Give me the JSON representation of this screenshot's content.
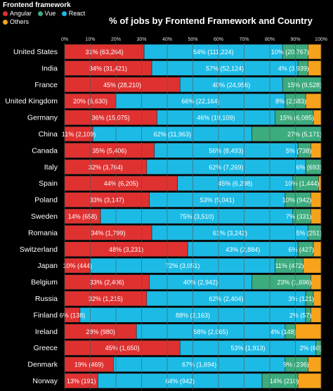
{
  "legend": {
    "title": "Frontend framework",
    "items": [
      {
        "name": "Angular",
        "color": "#e03131"
      },
      {
        "name": "Vue",
        "color": "#3cab7e"
      },
      {
        "name": "React",
        "color": "#1cbbe6"
      },
      {
        "name": "Others",
        "color": "#f7a21b"
      }
    ]
  },
  "chart_data": {
    "type": "bar",
    "orientation": "horizontal-stacked-percent",
    "title": "% of jobs by Frontend Framework and Country",
    "xlabel": "",
    "ylabel": "",
    "xlim": [
      0,
      100
    ],
    "x_ticks": [
      "0%",
      "10%",
      "20%",
      "30%",
      "40%",
      "50%",
      "60%",
      "70%",
      "80%",
      "90%",
      "100%"
    ],
    "grid": true,
    "legend_position": "top-left",
    "categories": [
      "United States",
      "India",
      "France",
      "United Kingdom",
      "Germany",
      "China",
      "Canada",
      "Italy",
      "Spain",
      "Poland",
      "Sweden",
      "Romania",
      "Switzerland",
      "Japan",
      "Belgium",
      "Russia",
      "Finland",
      "Ireland",
      "Greece",
      "Denmark",
      "Norway"
    ],
    "series": [
      {
        "name": "Angular",
        "color": "#e03131",
        "values": [
          31,
          34,
          45,
          20,
          36,
          11,
          35,
          32,
          44,
          33,
          14,
          34,
          48,
          10,
          33,
          32,
          6,
          28,
          45,
          19,
          13
        ],
        "labels": [
          "31% (63,264)",
          "34% (31,421)",
          "45% (28,210)",
          "20% (6,630)",
          "36% (15,075)",
          "11% (2,109)",
          "35% (5,406)",
          "32% (3,764)",
          "44% (6,205)",
          "33% (3,147)",
          "14% (658)",
          "34% (1,799)",
          "48% (3,231)",
          "10% (444)",
          "33% (2,406)",
          "32% (1,215)",
          "6% (138)",
          "28% (980)",
          "45% (1,650)",
          "19% (469)",
          "13% (191)"
        ]
      },
      {
        "name": "React",
        "color": "#1cbbe6",
        "values": [
          54,
          57,
          40,
          66,
          46,
          62,
          56,
          62,
          45,
          53,
          75,
          61,
          43,
          72,
          40,
          62,
          88,
          58,
          53,
          67,
          64
        ],
        "labels": [
          "54% (111,224)",
          "57% (52,124)",
          "40% (24,956)",
          "66% (22,164)",
          "46% (19,109)",
          "62% (11,963)",
          "56% (8,493)",
          "62% (7,269)",
          "45% (6,298)",
          "53% (5,041)",
          "75% (3,510)",
          "61% (3,242)",
          "43% (2,884)",
          "72% (3,051)",
          "40% (2,942)",
          "62% (2,404)",
          "88% (2,163)",
          "58% (2,065)",
          "53% (1,913)",
          "67% (1,694)",
          "64% (942)"
        ]
      },
      {
        "name": "Vue",
        "color": "#3cab7e",
        "values": [
          10,
          4,
          15,
          8,
          15,
          27,
          5,
          6,
          10,
          10,
          7,
          5,
          6,
          11,
          23,
          3,
          2,
          4,
          2,
          9,
          14
        ],
        "labels": [
          "10% (20,767)",
          "4% (3,939)",
          "15% (9,528)",
          "8% (2,583)",
          "15% (6,085)",
          "27% (5,171)",
          "5% (738)",
          "6% (693)",
          "10% (1,444)",
          "10% (942)",
          "7% (331)",
          "5% (251)",
          "6% (427)",
          "11% (472)",
          "23% (1,696)",
          "3% (121)",
          "2% (57)",
          "4% (148)",
          "2% (60)",
          "9% (236)",
          "14% (210)"
        ]
      },
      {
        "name": "Others",
        "color": "#f7a21b",
        "values": [
          5,
          5,
          0,
          6,
          3,
          0,
          4,
          0,
          1,
          4,
          4,
          0,
          3,
          7,
          4,
          3,
          4,
          10,
          0,
          5,
          9
        ],
        "labels": []
      }
    ]
  }
}
